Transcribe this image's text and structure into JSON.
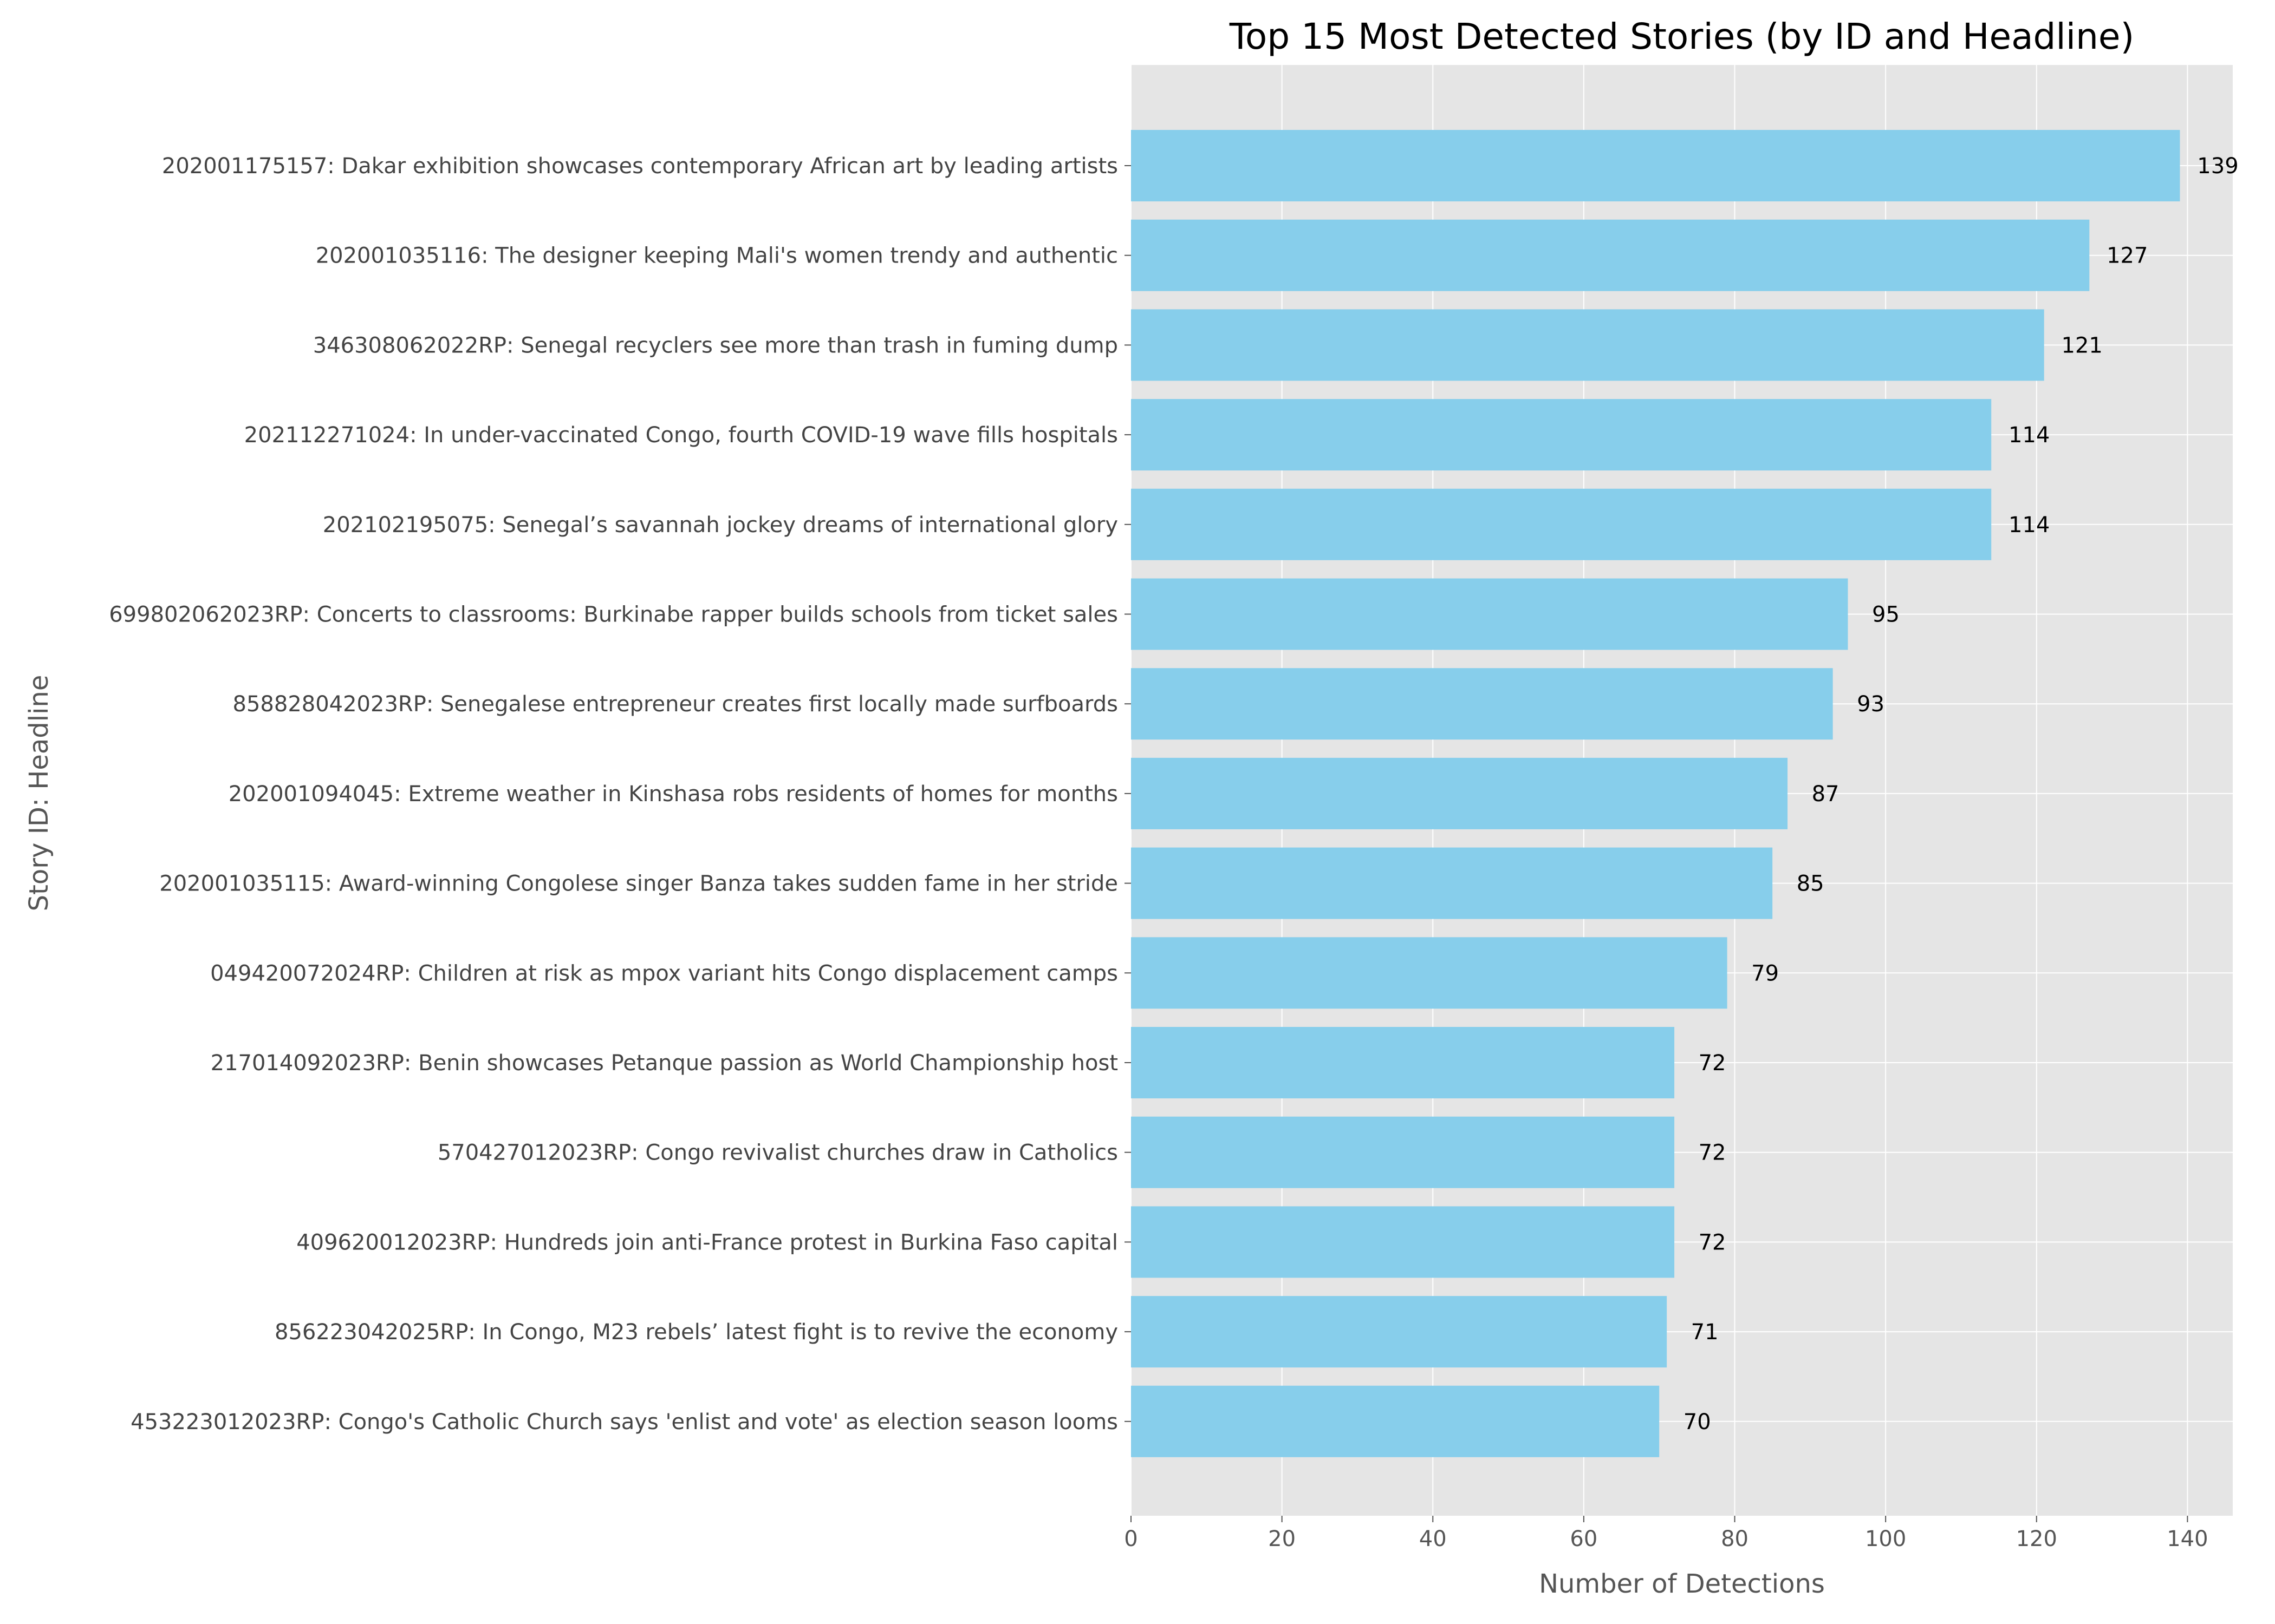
{
  "chart_data": {
    "type": "bar",
    "orientation": "horizontal",
    "title": "Top 15 Most Detected Stories (by ID and Headline)",
    "xlabel": "Number of Detections",
    "ylabel": "Story ID: Headline",
    "xlim": [
      0,
      146
    ],
    "xticks": [
      "0",
      "20",
      "40",
      "60",
      "80",
      "100",
      "120",
      "140"
    ],
    "categories": [
      "202001175157: Dakar exhibition showcases contemporary African art by leading artists",
      "202001035116: The designer keeping Mali's women trendy and authentic",
      "346308062022RP: Senegal recyclers see more than trash in fuming dump",
      "202112271024: In under-vaccinated Congo, fourth COVID-19 wave fills hospitals",
      "202102195075: Senegal’s savannah jockey dreams of international glory",
      "699802062023RP: Concerts to classrooms: Burkinabe rapper builds schools from ticket sales",
      "858828042023RP: Senegalese entrepreneur creates first locally made surfboards",
      "202001094045: Extreme weather in Kinshasa robs residents of homes for months",
      "202001035115: Award-winning Congolese singer Banza takes sudden fame in her stride",
      "049420072024RP: Children at risk as mpox variant hits Congo displacement camps",
      "217014092023RP: Benin showcases Petanque passion as World Championship host",
      "570427012023RP: Congo revivalist churches draw in Catholics",
      "409620012023RP: Hundreds join anti-France protest in Burkina Faso capital",
      "856223042025RP: In Congo, M23 rebels’ latest fight is to revive the economy",
      "453223012023RP: Congo's Catholic Church says 'enlist and vote' as election season looms"
    ],
    "values": [
      139,
      127,
      121,
      114,
      114,
      95,
      93,
      87,
      85,
      79,
      72,
      72,
      72,
      71,
      70
    ],
    "bar_color": "#87CEEB",
    "background_color": "#E5E5E5",
    "grid": true,
    "style": "ggplot"
  }
}
